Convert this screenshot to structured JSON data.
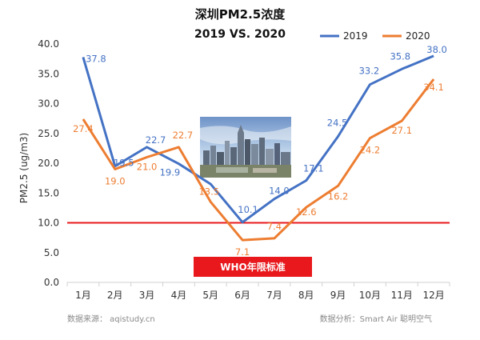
{
  "header": {
    "title": "深圳PM2.5浓度",
    "subtitle": "2019 VS. 2020"
  },
  "source_left": "数据来源： aqistudy.cn",
  "source_right": "数据分析：Smart Air 聪明空气",
  "who_label": "WHO年限标准",
  "colors": {
    "series_2019": "#4472c4",
    "series_2020": "#ed7d31",
    "who_line": "#e8181c",
    "who_box": "#e8181c"
  },
  "chart_data": {
    "type": "line",
    "title": "深圳PM2.5浓度",
    "subtitle": "2019 VS. 2020",
    "ylabel": "PM2.5 (ug/m3)",
    "xlabel": "",
    "ylim": [
      0,
      40
    ],
    "yticks": [
      "0.0",
      "5.0",
      "10.0",
      "15.0",
      "20.0",
      "25.0",
      "30.0",
      "35.0",
      "40.0"
    ],
    "categories": [
      "1月",
      "2月",
      "3月",
      "4月",
      "5月",
      "6月",
      "7月",
      "8月",
      "9月",
      "10月",
      "11月",
      "12月"
    ],
    "series": [
      {
        "name": "2019",
        "values": [
          37.8,
          19.5,
          22.7,
          19.9,
          16.5,
          10.1,
          14.0,
          17.1,
          24.5,
          33.2,
          35.8,
          38.0
        ],
        "labels": [
          "37.8",
          "19.5",
          "22.7",
          "19.9",
          "",
          "10.1",
          "14.0",
          "17.1",
          "24.5",
          "33.2",
          "35.8",
          "38.0"
        ]
      },
      {
        "name": "2020",
        "values": [
          27.4,
          19.0,
          21.0,
          22.7,
          13.5,
          7.1,
          7.4,
          12.6,
          16.2,
          24.2,
          27.1,
          34.1
        ],
        "labels": [
          "27.4",
          "19.0",
          "21.0",
          "22.7",
          "13.5",
          "7.1",
          "7.4",
          "12.6",
          "16.2",
          "24.2",
          "27.1",
          "34.1"
        ]
      }
    ],
    "reference_line": {
      "value": 10.0
    },
    "legend_position": "top-right",
    "grid": false,
    "inset_image": "shenzhen-skyline-photo"
  }
}
